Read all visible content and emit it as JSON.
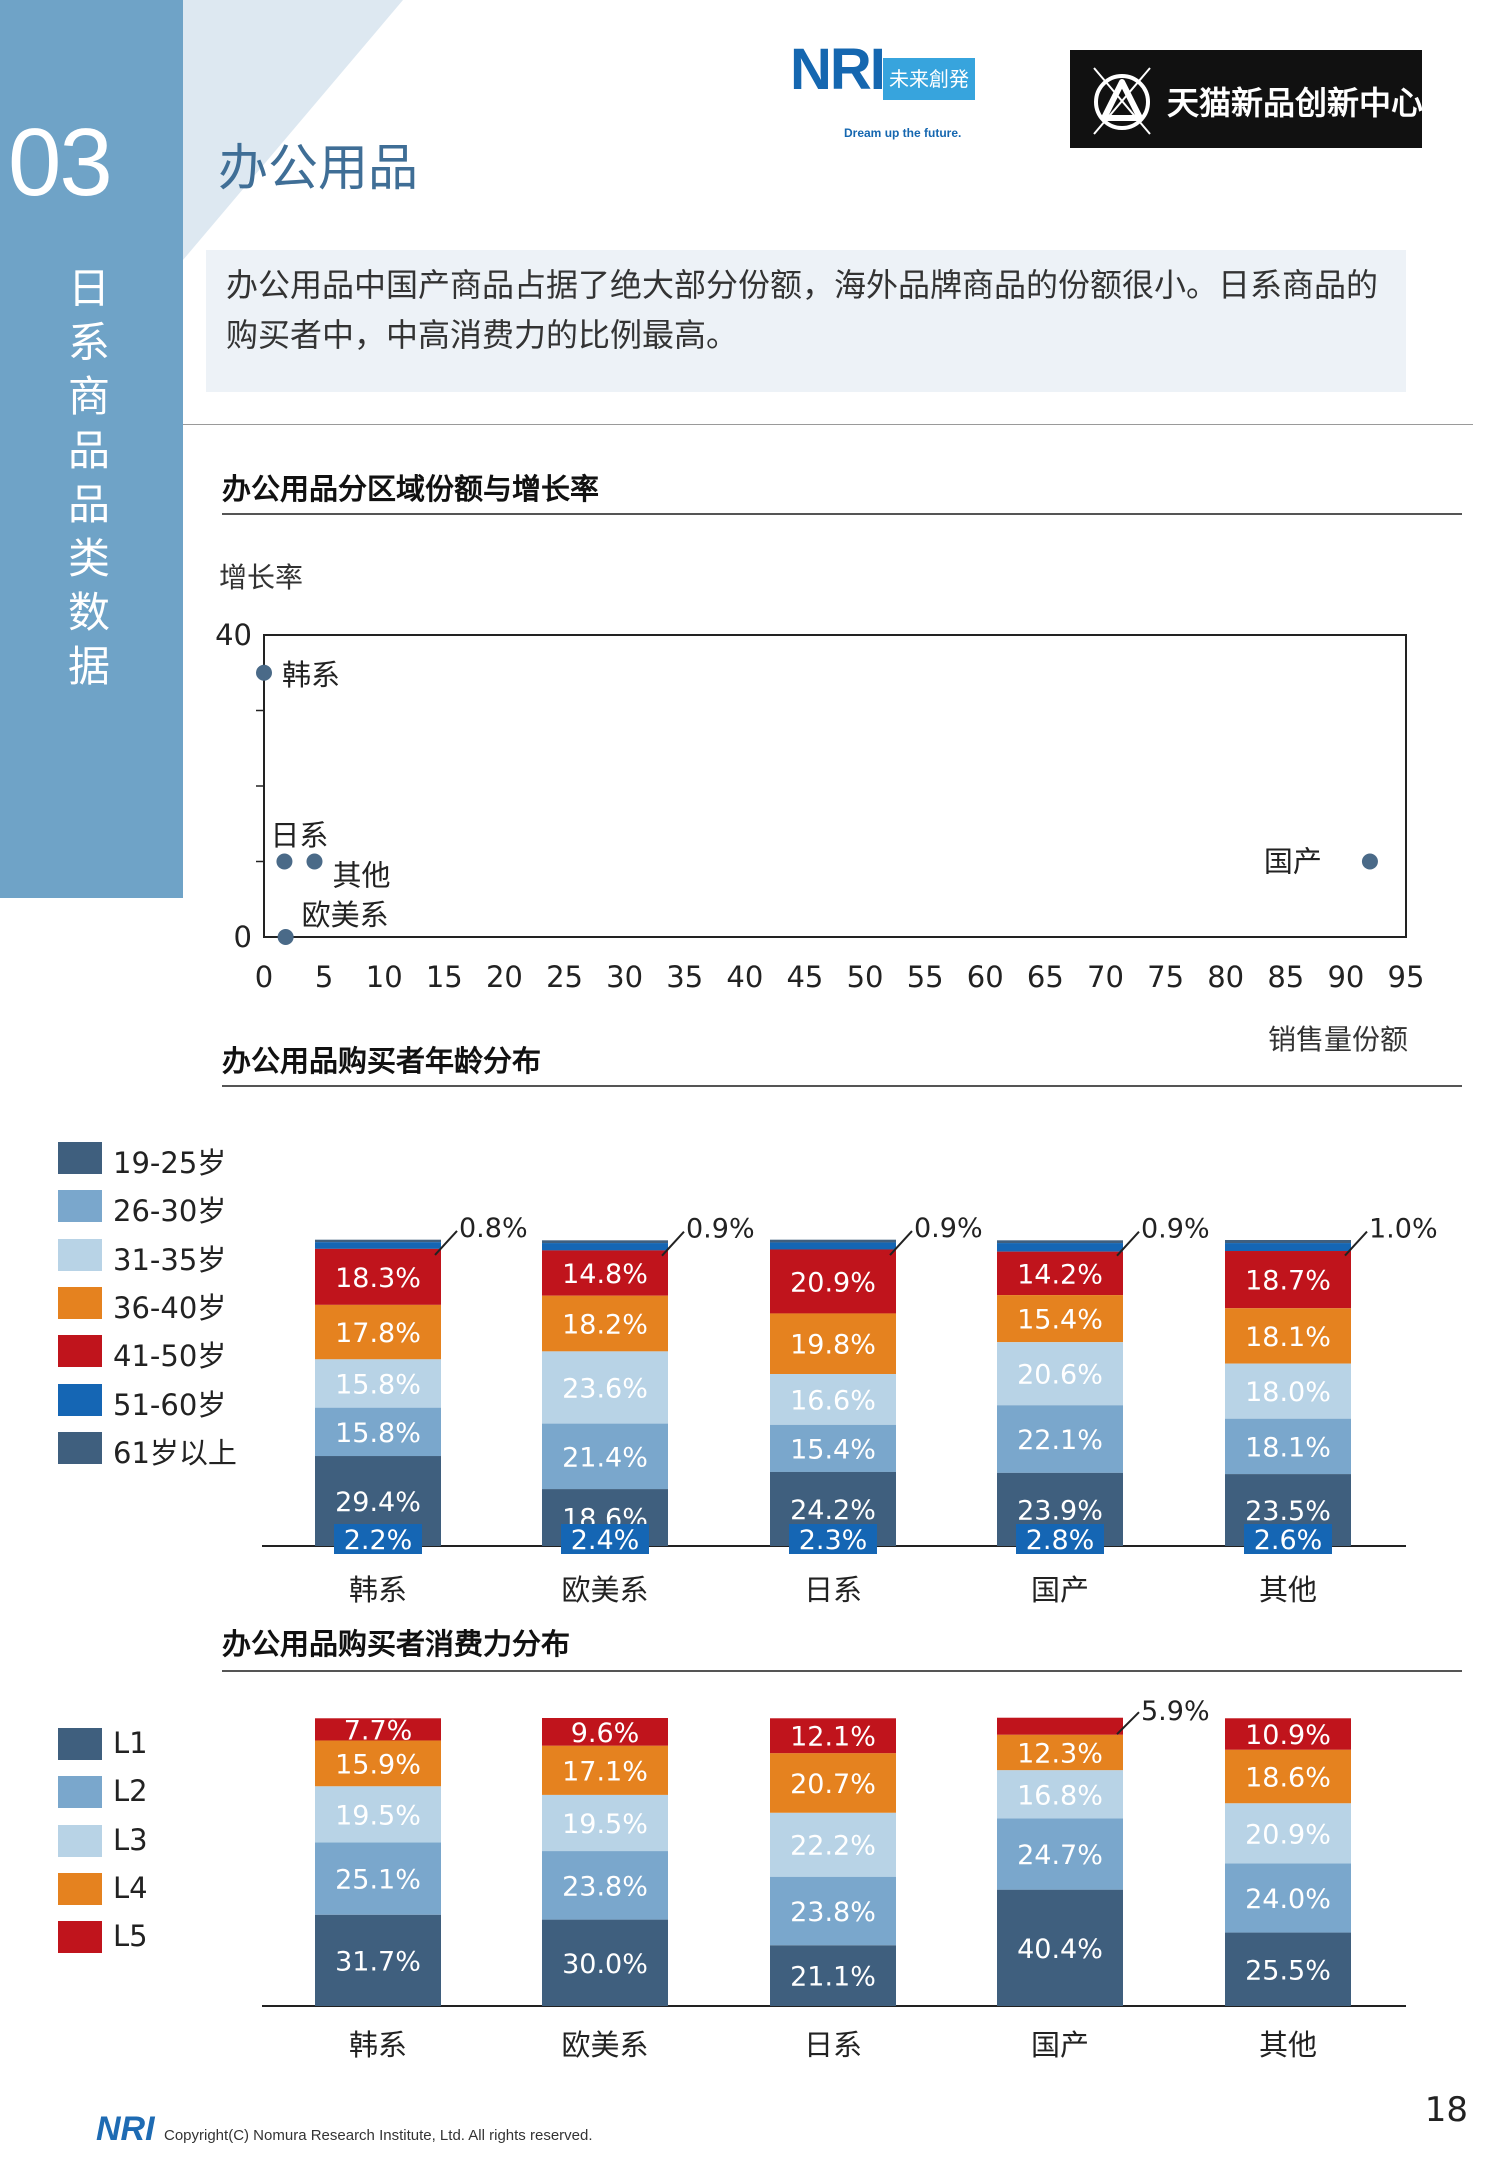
{
  "section": {
    "number": "03",
    "vertical_title": "日系商品品类数据"
  },
  "page_title": "办公用品",
  "logos": {
    "nri": "NRI",
    "nri_tag": "未来創発",
    "nri_slogan": "Dream up the future.",
    "tmall": "天猫新品创新中心"
  },
  "summary": "办公用品中国产商品占据了绝大部分份额，海外品牌商品的份额很小。日系商品的购买者中，中高消费力的比例最高。",
  "colors": {
    "accent": "#3f6e96",
    "sidebar": "#6fa3c7",
    "dot": "#4a6a88"
  },
  "chart_data": [
    {
      "type": "scatter",
      "title": "办公用品分区域份额与增长率",
      "ylabel": "增长率",
      "xlabel": "销售量份额",
      "xlim": [
        0,
        95
      ],
      "ylim": [
        0,
        40
      ],
      "xticks": [
        0,
        5,
        10,
        15,
        20,
        25,
        30,
        35,
        40,
        45,
        50,
        55,
        60,
        65,
        70,
        75,
        80,
        85,
        90,
        95
      ],
      "yticks": [
        0,
        40
      ],
      "points": [
        {
          "name": "韩系",
          "x": 0,
          "y": 35
        },
        {
          "name": "日系",
          "x": 1.7,
          "y": 10
        },
        {
          "name": "其他",
          "x": 4.2,
          "y": 10
        },
        {
          "name": "欧美系",
          "x": 1.8,
          "y": 0
        },
        {
          "name": "国产",
          "x": 92,
          "y": 10
        }
      ]
    },
    {
      "type": "bar",
      "stacked": true,
      "title": "办公用品购买者年龄分布",
      "categories": [
        "韩系",
        "欧美系",
        "日系",
        "国产",
        "其他"
      ],
      "series": [
        {
          "name": "19-25岁",
          "color": "#3f5f7e",
          "values": [
            29.4,
            18.6,
            24.2,
            23.9,
            23.5
          ]
        },
        {
          "name": "26-30岁",
          "color": "#7aa7cc",
          "values": [
            15.8,
            21.4,
            15.4,
            22.1,
            18.1
          ]
        },
        {
          "name": "31-35岁",
          "color": "#b8d3e6",
          "values": [
            15.8,
            23.6,
            16.6,
            20.6,
            18.0
          ]
        },
        {
          "name": "36-40岁",
          "color": "#e5821f",
          "values": [
            17.8,
            18.2,
            19.8,
            15.4,
            18.1
          ]
        },
        {
          "name": "41-50岁",
          "color": "#c0141c",
          "values": [
            18.3,
            14.8,
            20.9,
            14.2,
            18.7
          ]
        },
        {
          "name": "51-60岁",
          "color": "#1566b4",
          "values": [
            2.2,
            2.4,
            2.3,
            2.8,
            2.6
          ]
        },
        {
          "name": "61岁以上",
          "color": "#3f5f7e",
          "values": [
            0.8,
            0.9,
            0.9,
            0.9,
            1.0
          ]
        }
      ]
    },
    {
      "type": "bar",
      "stacked": true,
      "title": "办公用品购买者消费力分布",
      "categories": [
        "韩系",
        "欧美系",
        "日系",
        "国产",
        "其他"
      ],
      "series": [
        {
          "name": "L1",
          "color": "#3f5f7e",
          "values": [
            31.7,
            30.0,
            21.1,
            40.4,
            25.5
          ]
        },
        {
          "name": "L2",
          "color": "#7aa7cc",
          "values": [
            25.1,
            23.8,
            23.8,
            24.7,
            24.0
          ]
        },
        {
          "name": "L3",
          "color": "#b8d3e6",
          "values": [
            19.5,
            19.5,
            22.2,
            16.8,
            20.9
          ]
        },
        {
          "name": "L4",
          "color": "#e5821f",
          "values": [
            15.9,
            17.1,
            20.7,
            12.3,
            18.6
          ]
        },
        {
          "name": "L5",
          "color": "#c0141c",
          "values": [
            7.7,
            9.6,
            12.1,
            5.9,
            10.9
          ]
        }
      ]
    }
  ],
  "footer": {
    "logo": "NRI",
    "copyright": "Copyright(C) Nomura Research Institute, Ltd. All rights reserved.",
    "page": "18"
  }
}
